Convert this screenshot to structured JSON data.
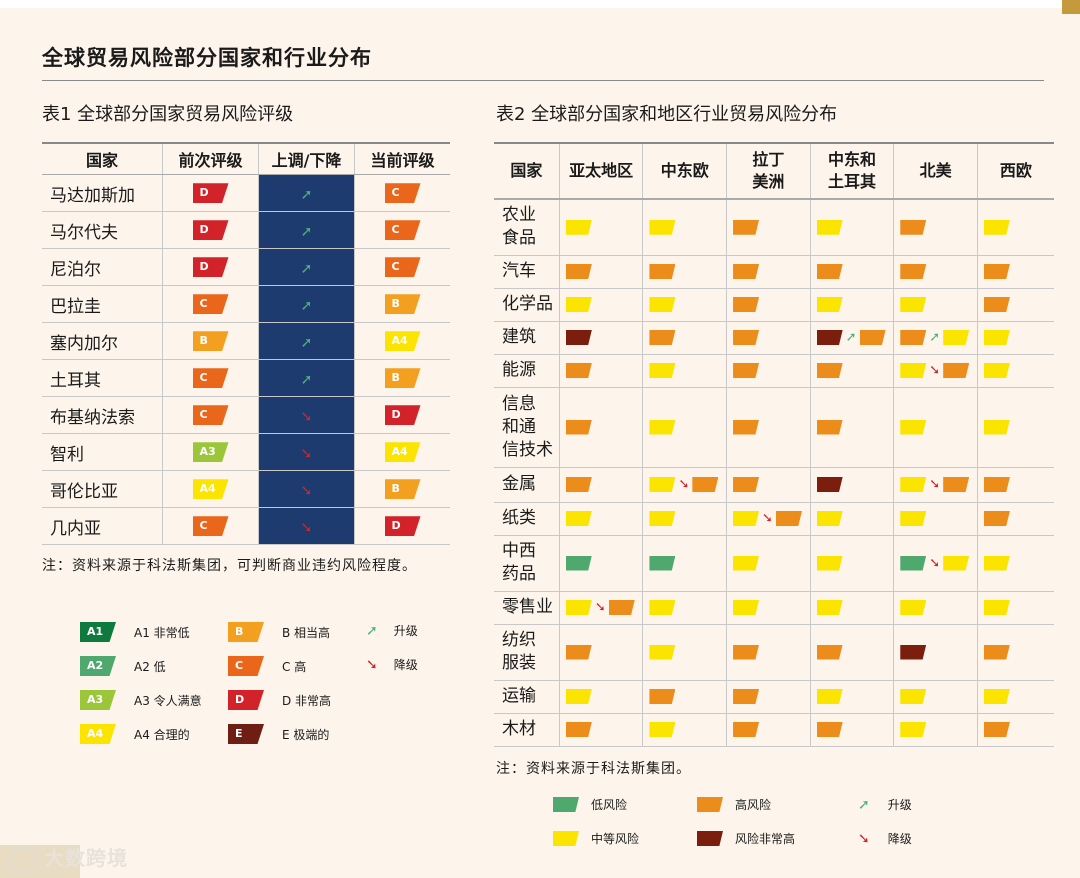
{
  "main_title": "全球贸易风险部分国家和行业分布",
  "table1": {
    "title": "表1  全球部分国家贸易风险评级",
    "headers": [
      "国家",
      "前次评级",
      "上调/下降",
      "当前评级"
    ],
    "rows": [
      {
        "country": "马达加斯加",
        "prev": "D",
        "change": "up",
        "curr": "C"
      },
      {
        "country": "马尔代夫",
        "prev": "D",
        "change": "up",
        "curr": "C"
      },
      {
        "country": "尼泊尔",
        "prev": "D",
        "change": "up",
        "curr": "C"
      },
      {
        "country": "巴拉圭",
        "prev": "C",
        "change": "up",
        "curr": "B"
      },
      {
        "country": "塞内加尔",
        "prev": "B",
        "change": "up",
        "curr": "A4"
      },
      {
        "country": "土耳其",
        "prev": "C",
        "change": "up",
        "curr": "B"
      },
      {
        "country": "布基纳法索",
        "prev": "C",
        "change": "down",
        "curr": "D"
      },
      {
        "country": "智利",
        "prev": "A3",
        "change": "down",
        "curr": "A4"
      },
      {
        "country": "哥伦比亚",
        "prev": "A4",
        "change": "down",
        "curr": "B"
      },
      {
        "country": "几内亚",
        "prev": "C",
        "change": "down",
        "curr": "D"
      }
    ],
    "note": "注：资料来源于科法斯集团，可判断商业违约风险程度。",
    "legend": [
      {
        "code": "A1",
        "label": "A1 非常低"
      },
      {
        "code": "A2",
        "label": "A2 低"
      },
      {
        "code": "A3",
        "label": "A3 令人满意"
      },
      {
        "code": "A4",
        "label": "A4 合理的"
      },
      {
        "code": "B",
        "label": "B 相当高"
      },
      {
        "code": "C",
        "label": "C 高"
      },
      {
        "code": "D",
        "label": "D 非常高"
      },
      {
        "code": "E",
        "label": "E 极端的"
      }
    ],
    "legend_arrows": {
      "up": "升级",
      "down": "降级"
    }
  },
  "rating_colors": {
    "A1": "#0f7a3e",
    "A2": "#4fa96f",
    "A3": "#9cc63a",
    "A4": "#fbe400",
    "B": "#f3a021",
    "C": "#e9661a",
    "D": "#d2232a",
    "E": "#6e1e12"
  },
  "table2": {
    "title": "表2  全球部分国家和地区行业贸易风险分布",
    "headers": [
      "国家",
      "亚太地区",
      "中东欧",
      "拉丁\n美洲",
      "中东和\n土耳其",
      "北美",
      "西欧"
    ],
    "rows": [
      {
        "sector": "农业\n食品",
        "cells": [
          [
            "mid"
          ],
          [
            "mid"
          ],
          [
            "high"
          ],
          [
            "mid"
          ],
          [
            "high"
          ],
          [
            "mid"
          ]
        ]
      },
      {
        "sector": "汽车",
        "cells": [
          [
            "high"
          ],
          [
            "high"
          ],
          [
            "high"
          ],
          [
            "high"
          ],
          [
            "high"
          ],
          [
            "high"
          ]
        ]
      },
      {
        "sector": "化学品",
        "cells": [
          [
            "mid"
          ],
          [
            "mid"
          ],
          [
            "high"
          ],
          [
            "mid"
          ],
          [
            "mid"
          ],
          [
            "high"
          ]
        ]
      },
      {
        "sector": "建筑",
        "cells": [
          [
            "vhigh"
          ],
          [
            "high"
          ],
          [
            "high"
          ],
          [
            "vhigh",
            "up",
            "high"
          ],
          [
            "high",
            "up",
            "mid"
          ],
          [
            "mid"
          ]
        ]
      },
      {
        "sector": "能源",
        "cells": [
          [
            "high"
          ],
          [
            "mid"
          ],
          [
            "high"
          ],
          [
            "high"
          ],
          [
            "mid",
            "down",
            "high"
          ],
          [
            "mid"
          ]
        ]
      },
      {
        "sector": "信息\n和通\n信技术",
        "cells": [
          [
            "high"
          ],
          [
            "mid"
          ],
          [
            "high"
          ],
          [
            "high"
          ],
          [
            "mid"
          ],
          [
            "mid"
          ]
        ]
      },
      {
        "sector": "金属",
        "cells": [
          [
            "high"
          ],
          [
            "mid",
            "down",
            "high"
          ],
          [
            "high"
          ],
          [
            "vhigh"
          ],
          [
            "mid",
            "down",
            "high"
          ],
          [
            "high"
          ]
        ]
      },
      {
        "sector": "纸类",
        "cells": [
          [
            "mid"
          ],
          [
            "mid"
          ],
          [
            "mid",
            "down",
            "high"
          ],
          [
            "mid"
          ],
          [
            "mid"
          ],
          [
            "high"
          ]
        ]
      },
      {
        "sector": "中西\n药品",
        "cells": [
          [
            "low"
          ],
          [
            "low"
          ],
          [
            "mid"
          ],
          [
            "mid"
          ],
          [
            "low",
            "down",
            "mid"
          ],
          [
            "mid"
          ]
        ]
      },
      {
        "sector": "零售业",
        "cells": [
          [
            "mid",
            "down",
            "high"
          ],
          [
            "mid"
          ],
          [
            "mid"
          ],
          [
            "mid"
          ],
          [
            "mid"
          ],
          [
            "mid"
          ]
        ]
      },
      {
        "sector": "纺织\n服装",
        "cells": [
          [
            "high"
          ],
          [
            "mid"
          ],
          [
            "high"
          ],
          [
            "high"
          ],
          [
            "vhigh"
          ],
          [
            "high"
          ]
        ]
      },
      {
        "sector": "运输",
        "cells": [
          [
            "mid"
          ],
          [
            "high"
          ],
          [
            "high"
          ],
          [
            "mid"
          ],
          [
            "mid"
          ],
          [
            "mid"
          ]
        ]
      },
      {
        "sector": "木材",
        "cells": [
          [
            "high"
          ],
          [
            "mid"
          ],
          [
            "high"
          ],
          [
            "high"
          ],
          [
            "mid"
          ],
          [
            "high"
          ]
        ]
      }
    ],
    "note": "注：资料来源于科法斯集团。",
    "legend": [
      {
        "level": "low",
        "label": "低风险"
      },
      {
        "level": "high",
        "label": "高风险"
      },
      {
        "level": "mid",
        "label": "中等风险"
      },
      {
        "level": "vhigh",
        "label": "风险非常高"
      }
    ],
    "legend_arrows": {
      "up": "升级",
      "down": "降级"
    }
  },
  "watermark": "大数跨境",
  "icons": {
    "up": "arrow-up-right-icon",
    "down": "arrow-down-right-icon"
  }
}
